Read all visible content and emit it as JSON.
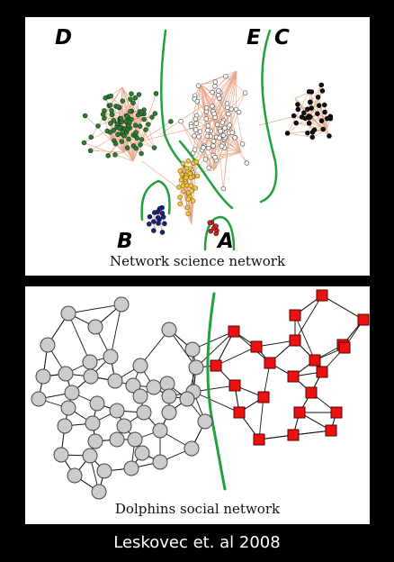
{
  "top_panel": {
    "caption": "Network science network",
    "cluster_labels": [
      "A",
      "B",
      "C",
      "D",
      "E"
    ],
    "colors": {
      "edge": "#e8a98c",
      "divider": "#22a03c",
      "D": "#2e7d32",
      "E": "#ffffff",
      "C": "#111111",
      "B": "#1a237e",
      "A": "#c62828",
      "F": "#f2c744"
    }
  },
  "bottom_panel": {
    "caption": "Dolphins social network",
    "colors": {
      "left": "#cccccc",
      "right": "#ee1111",
      "edge": "#111111",
      "divider": "#22a03c"
    }
  },
  "footer": "Leskovec et. al 2008"
}
